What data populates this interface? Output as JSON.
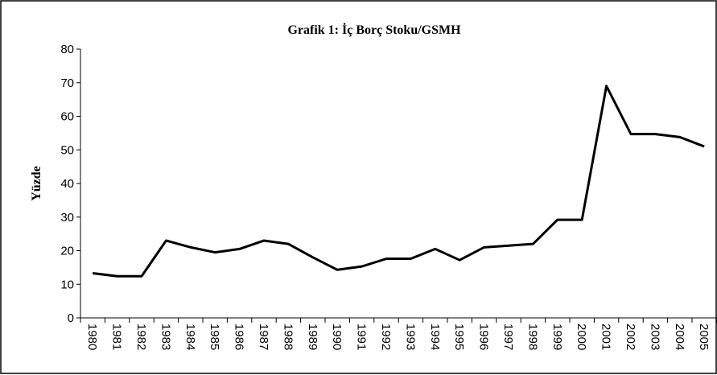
{
  "chart_data": {
    "type": "line",
    "title": "Grafik 1: İç Borç Stoku/GSMH",
    "ylabel": "Yüzde",
    "categories": [
      "1980",
      "1981",
      "1982",
      "1983",
      "1984",
      "1985",
      "1986",
      "1987",
      "1988",
      "1989",
      "1990",
      "1991",
      "1992",
      "1993",
      "1994",
      "1995",
      "1996",
      "1997",
      "1998",
      "1999",
      "2000",
      "2001",
      "2002",
      "2003",
      "2004",
      "2005"
    ],
    "values": [
      13.3,
      12.4,
      12.4,
      23,
      21,
      19.5,
      20.5,
      23,
      22,
      18,
      14.3,
      15.3,
      17.6,
      17.6,
      20.5,
      17.2,
      21,
      21.5,
      22,
      29.2,
      29.2,
      69,
      54.7,
      54.7,
      53.8,
      51
    ],
    "color": "#000000",
    "ylim": [
      0,
      80
    ],
    "yticks": [
      0,
      10,
      20,
      30,
      40,
      50,
      60,
      70,
      80
    ],
    "grid": false
  }
}
